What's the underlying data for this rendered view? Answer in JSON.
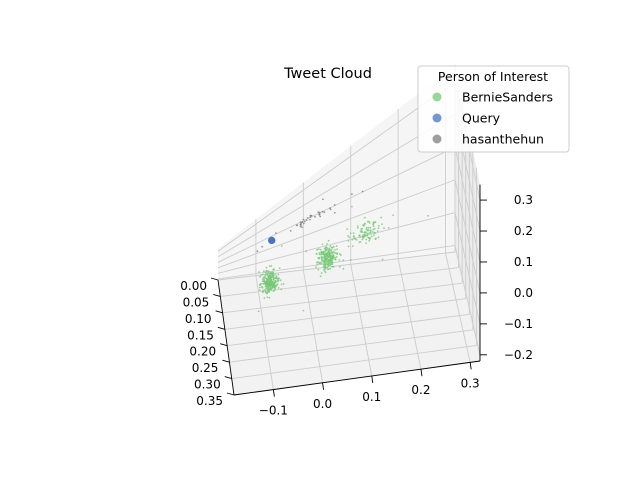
{
  "chart_data": {
    "type": "scatter",
    "projection": "3d",
    "title": "Tweet Cloud",
    "xlabel": "",
    "ylabel": "",
    "zlabel": "",
    "grid": true,
    "xlim": [
      0.0,
      0.35
    ],
    "ylim": [
      -0.18,
      0.32
    ],
    "zlim": [
      -0.22,
      0.35
    ],
    "x_ticks": [
      "0.00",
      "0.05",
      "0.10",
      "0.15",
      "0.20",
      "0.25",
      "0.30",
      "0.35"
    ],
    "y_ticks": [
      "−0.1",
      "0.0",
      "0.1",
      "0.2",
      "0.3"
    ],
    "z_ticks": [
      "0.3",
      "0.2",
      "0.1",
      "0.0",
      "−0.1",
      "−0.2"
    ],
    "legend": {
      "title": "Person of Interest",
      "placement": "top-right",
      "entries": [
        "BernieSanders",
        "Query",
        "hasanthehun"
      ]
    },
    "series": [
      {
        "name": "BernieSanders",
        "color": "#77c877",
        "marker_size": "small",
        "count": 600,
        "points": [
          [
            0.06,
            -0.1,
            0.02
          ],
          [
            0.09,
            -0.08,
            -0.04
          ],
          [
            0.12,
            -0.09,
            0.05
          ],
          [
            0.15,
            -0.11,
            -0.06
          ],
          [
            0.08,
            0.02,
            0.06
          ],
          [
            0.11,
            0.04,
            -0.02
          ],
          [
            0.14,
            0.06,
            0.03
          ],
          [
            0.05,
            0.0,
            0.01
          ],
          [
            0.1,
            0.12,
            0.04
          ],
          [
            0.13,
            0.15,
            -0.03
          ],
          [
            0.07,
            0.18,
            0.05
          ],
          [
            0.16,
            0.08,
            0.08
          ],
          [
            0.04,
            -0.05,
            0.1
          ],
          [
            0.18,
            -0.02,
            -0.08
          ],
          [
            0.09,
            0.25,
            0.02
          ],
          [
            0.02,
            0.1,
            0.09
          ]
        ]
      },
      {
        "name": "Query",
        "color": "#4a74c0",
        "marker_size": "large",
        "points": [
          [
            0.03,
            -0.07,
            0.16
          ]
        ]
      },
      {
        "name": "hasanthehun",
        "color": "#7f7f7f",
        "marker_size": "small",
        "count": 40,
        "points": [
          [
            0.03,
            -0.09,
            0.15
          ],
          [
            0.02,
            -0.06,
            0.17
          ],
          [
            0.04,
            0.02,
            0.18
          ],
          [
            0.05,
            0.06,
            0.16
          ],
          [
            0.02,
            0.1,
            0.15
          ],
          [
            0.03,
            -0.1,
            0.13
          ],
          [
            0.04,
            0.12,
            0.17
          ],
          [
            0.01,
            0.04,
            0.19
          ]
        ]
      }
    ]
  }
}
